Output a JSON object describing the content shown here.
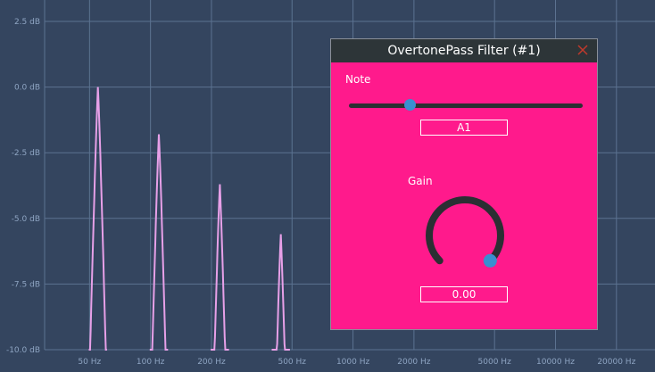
{
  "plot": {
    "y_ticks": [
      {
        "value": 2.5,
        "label": "2.5 dB"
      },
      {
        "value": 0.0,
        "label": "0.0 dB"
      },
      {
        "value": -2.5,
        "label": "-2.5 dB"
      },
      {
        "value": -5.0,
        "label": "-5.0 dB"
      },
      {
        "value": -7.5,
        "label": "-7.5 dB"
      },
      {
        "value": -10.0,
        "label": "-10.0 dB"
      }
    ],
    "x_ticks": [
      {
        "value": 50,
        "label": "50 Hz"
      },
      {
        "value": 100,
        "label": "100 Hz"
      },
      {
        "value": 200,
        "label": "200 Hz"
      },
      {
        "value": 500,
        "label": "500 Hz"
      },
      {
        "value": 1000,
        "label": "1000 Hz"
      },
      {
        "value": 2000,
        "label": "2000 Hz"
      },
      {
        "value": 5000,
        "label": "5000 Hz"
      },
      {
        "value": 10000,
        "label": "10000 Hz"
      },
      {
        "value": 20000,
        "label": "20000 Hz"
      }
    ],
    "curve_color": "#e7a0e8",
    "peaks": [
      {
        "freq": 55,
        "gain_db": 0.0
      },
      {
        "freq": 110,
        "gain_db": -1.8
      },
      {
        "freq": 220,
        "gain_db": -3.7
      },
      {
        "freq": 440,
        "gain_db": -5.6
      }
    ]
  },
  "dialog": {
    "title": "OvertonePass Filter (#1)",
    "note_label": "Note",
    "note_value": "A1",
    "note_slider_fraction": 0.26,
    "gain_label": "Gain",
    "gain_value": "0.00",
    "gain_knob_fraction": 1.0,
    "colors": {
      "background": "#ff1a8c",
      "titlebar": "#2d3538",
      "thumb": "#3a8fd0",
      "close": "#c0392b"
    }
  }
}
